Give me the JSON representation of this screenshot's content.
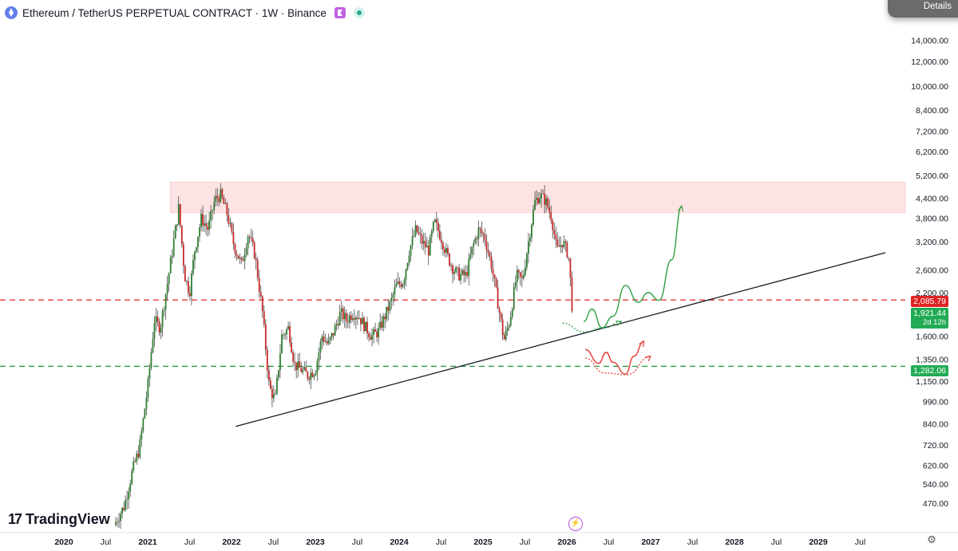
{
  "header": {
    "title": "Ethereum / TetherUS PERPETUAL CONTRACT · 1W · Binance",
    "symbol_icon": "ethereum-icon"
  },
  "details_button": {
    "label": "Details"
  },
  "branding": {
    "logo_text": "TradingView",
    "logo_mark": "17"
  },
  "colors": {
    "up": "#089981",
    "down": "#f23645",
    "candle_body_up": "#2e7d32",
    "candle_body_down": "#c62828",
    "zone": "#fde3e3",
    "resistance": "#e02424",
    "support": "#1e9b3d",
    "trendline": "#131722",
    "green_path": "#2ea043",
    "red_path": "#e53935"
  },
  "chart_data": {
    "type": "candlestick",
    "title": "Ethereum / TetherUS PERPETUAL CONTRACT · 1W · Binance",
    "scale": "log",
    "ylim": [
      420,
      16000
    ],
    "y_ticks": [
      14000,
      12000,
      10000,
      8400,
      7200,
      6200,
      5200,
      4400,
      3800,
      3200,
      2600,
      2200,
      1850,
      1600,
      1350,
      1150,
      990,
      840,
      720,
      620,
      540,
      470
    ],
    "y_tick_labels": [
      "14,000.00",
      "12,000.00",
      "10,000.00",
      "8,400.00",
      "7,200.00",
      "6,200.00",
      "5,200.00",
      "4,400.00",
      "3,800.00",
      "3,200.00",
      "2,600.00",
      "2,200.00",
      "",
      "1,600.00",
      "1,350.00",
      "1,150.00",
      "990.00",
      "840.00",
      "720.00",
      "620.00",
      "540.00",
      "470.00"
    ],
    "x_ticks": [
      "2020",
      "Jul",
      "2021",
      "Jul",
      "2022",
      "Jul",
      "2023",
      "Jul",
      "2024",
      "Jul",
      "2025",
      "Jul",
      "2026",
      "Jul",
      "2027",
      "Jul",
      "2028",
      "Jul",
      "2029",
      "Jul"
    ],
    "x_tick_years": [
      2020.0,
      2020.5,
      2021.0,
      2021.5,
      2022.0,
      2022.5,
      2023.0,
      2023.5,
      2024.0,
      2024.5,
      2025.0,
      2025.5,
      2026.0,
      2026.5,
      2027.0,
      2027.5,
      2028.0,
      2028.5,
      2029.0,
      2029.5
    ],
    "bold_year_ticks": [
      "2020",
      "2021",
      "2022",
      "2023",
      "2024",
      "2025",
      "2026",
      "2027",
      "2028",
      "2029"
    ],
    "price_path": [
      [
        2020.6,
        400
      ],
      [
        2020.72,
        460
      ],
      [
        2020.82,
        600
      ],
      [
        2020.9,
        700
      ],
      [
        2021.0,
        1100
      ],
      [
        2021.08,
        1800
      ],
      [
        2021.15,
        1700
      ],
      [
        2021.25,
        2500
      ],
      [
        2021.37,
        4100
      ],
      [
        2021.44,
        2500
      ],
      [
        2021.5,
        2200
      ],
      [
        2021.56,
        3000
      ],
      [
        2021.64,
        3800
      ],
      [
        2021.72,
        3500
      ],
      [
        2021.8,
        4350
      ],
      [
        2021.87,
        4500
      ],
      [
        2021.95,
        3900
      ],
      [
        2022.03,
        3100
      ],
      [
        2022.12,
        2700
      ],
      [
        2022.2,
        3400
      ],
      [
        2022.28,
        2900
      ],
      [
        2022.37,
        1900
      ],
      [
        2022.45,
        1100
      ],
      [
        2022.52,
        1000
      ],
      [
        2022.6,
        1600
      ],
      [
        2022.68,
        1700
      ],
      [
        2022.75,
        1300
      ],
      [
        2022.83,
        1250
      ],
      [
        2022.91,
        1200
      ],
      [
        2023.0,
        1250
      ],
      [
        2023.08,
        1600
      ],
      [
        2023.15,
        1500
      ],
      [
        2023.22,
        1650
      ],
      [
        2023.3,
        1900
      ],
      [
        2023.37,
        1800
      ],
      [
        2023.45,
        1900
      ],
      [
        2023.52,
        1850
      ],
      [
        2023.6,
        1700
      ],
      [
        2023.67,
        1600
      ],
      [
        2023.75,
        1650
      ],
      [
        2023.83,
        1850
      ],
      [
        2023.9,
        2050
      ],
      [
        2023.96,
        2300
      ],
      [
        2024.05,
        2400
      ],
      [
        2024.12,
        3000
      ],
      [
        2024.2,
        3500
      ],
      [
        2024.27,
        3200
      ],
      [
        2024.35,
        3000
      ],
      [
        2024.42,
        3700
      ],
      [
        2024.5,
        3300
      ],
      [
        2024.57,
        2900
      ],
      [
        2024.65,
        2600
      ],
      [
        2024.72,
        2500
      ],
      [
        2024.8,
        2500
      ],
      [
        2024.88,
        3100
      ],
      [
        2024.95,
        3500
      ],
      [
        2025.02,
        3300
      ],
      [
        2025.1,
        2700
      ],
      [
        2025.17,
        2100
      ],
      [
        2025.25,
        1550
      ],
      [
        2025.32,
        1800
      ],
      [
        2025.4,
        2500
      ],
      [
        2025.47,
        2400
      ],
      [
        2025.55,
        3300
      ],
      [
        2025.62,
        4300
      ],
      [
        2025.68,
        4500
      ],
      [
        2025.75,
        4300
      ],
      [
        2025.82,
        3800
      ],
      [
        2025.88,
        3000
      ],
      [
        2025.95,
        3200
      ],
      [
        2026.02,
        2900
      ],
      [
        2026.07,
        1921.44
      ]
    ],
    "resistance_zone": {
      "low": 3950,
      "high": 4950,
      "from": 2021.25,
      "to": 2029.8
    },
    "horizontal_lines": [
      {
        "name": "resistance",
        "price": 2085.79,
        "label": "2,085.79",
        "style": "dashed",
        "color": "#e02424"
      },
      {
        "name": "support",
        "price": 1282.06,
        "label": "1,282.06",
        "style": "dashed",
        "color": "#1e9b3d"
      }
    ],
    "last_price": {
      "value": 1921.44,
      "label": "1,921.44",
      "countdown": "2d 12h"
    },
    "trendline": {
      "from": [
        2022.05,
        825
      ],
      "to": [
        2029.8,
        2950
      ]
    },
    "scenarios": {
      "bullish": [
        [
          2026.2,
          1780
        ],
        [
          2026.3,
          1950
        ],
        [
          2026.42,
          1700
        ],
        [
          2026.55,
          1850
        ],
        [
          2026.7,
          2320
        ],
        [
          2026.85,
          2050
        ],
        [
          2026.97,
          2200
        ],
        [
          2027.1,
          2080
        ],
        [
          2027.25,
          2800
        ],
        [
          2027.37,
          4150
        ]
      ],
      "bullish_arc": [
        [
          2025.95,
          1760
        ],
        [
          2026.2,
          1650
        ],
        [
          2026.45,
          1700
        ],
        [
          2026.65,
          1780
        ]
      ],
      "bearish": [
        [
          2026.22,
          1450
        ],
        [
          2026.38,
          1310
        ],
        [
          2026.47,
          1420
        ],
        [
          2026.55,
          1320
        ],
        [
          2026.7,
          1210
        ],
        [
          2026.8,
          1380
        ],
        [
          2026.92,
          1540
        ]
      ],
      "bearish_arc": [
        [
          2026.22,
          1360
        ],
        [
          2026.45,
          1220
        ],
        [
          2026.72,
          1205
        ],
        [
          2027.0,
          1380
        ]
      ]
    }
  }
}
